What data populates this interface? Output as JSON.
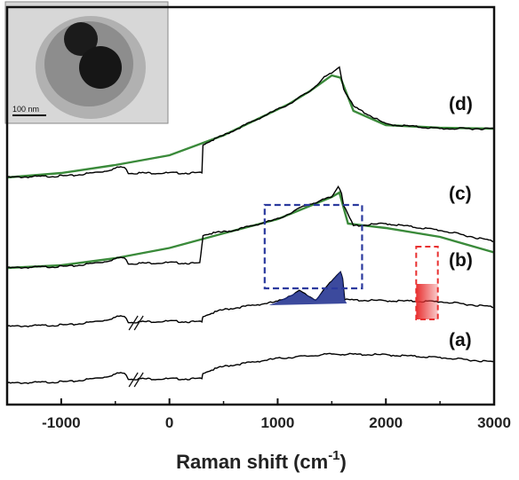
{
  "chart_data": {
    "type": "line",
    "title": "",
    "xlabel": "Raman shift",
    "xlabel_unit_base": "cm",
    "xlabel_unit_exp": "-1",
    "ylabel": "",
    "xlim": [
      -1500,
      3000
    ],
    "xticks": [
      -1000,
      0,
      1000,
      2000,
      3000
    ],
    "xtick_labels": [
      "-1000",
      "0",
      "1000",
      "2000",
      "3000"
    ],
    "grid": false,
    "colors": {
      "measured": "#000000",
      "fit": "#3a8a3a",
      "highlight_blue": "#1a2a8c",
      "highlight_red": "#e83030"
    },
    "series": [
      {
        "label": "(a)",
        "offset": 0,
        "x": [
          -1500,
          -900,
          -600,
          -450,
          -400,
          -380,
          300,
          310,
          500,
          1000,
          1500,
          2000,
          2500,
          3000
        ],
        "y": [
          0,
          4,
          14,
          24,
          20,
          10,
          10,
          24,
          38,
          56,
          66,
          64,
          58,
          48
        ]
      },
      {
        "label": "(b)",
        "offset": 1,
        "x": [
          -1500,
          -900,
          -600,
          -450,
          -400,
          -380,
          0,
          300,
          310,
          500,
          1000,
          1200,
          1350,
          1580,
          1600,
          1620,
          2000,
          2500,
          3000
        ],
        "y": [
          0,
          4,
          14,
          24,
          20,
          10,
          12,
          10,
          24,
          38,
          56,
          80,
          60,
          125,
          110,
          60,
          58,
          56,
          44
        ]
      },
      {
        "label": "(c)",
        "offset": 2,
        "x": [
          -1500,
          -900,
          -600,
          -450,
          -400,
          -380,
          0,
          280,
          300,
          310,
          600,
          1000,
          1250,
          1500,
          1560,
          1590,
          1610,
          1700,
          2000,
          2500,
          3000
        ],
        "y": [
          0,
          4,
          14,
          24,
          20,
          10,
          12,
          10,
          50,
          75,
          85,
          110,
          140,
          160,
          185,
          170,
          140,
          95,
          100,
          85,
          60
        ],
        "fit_x": [
          -1500,
          -1000,
          -500,
          0,
          500,
          1000,
          1300,
          1500,
          1570,
          1650,
          2000,
          2500,
          3000
        ],
        "fit_y": [
          0,
          6,
          22,
          45,
          78,
          110,
          140,
          160,
          170,
          100,
          90,
          70,
          35
        ]
      },
      {
        "label": "(d)",
        "offset": 3,
        "x": [
          -1500,
          -900,
          -600,
          -450,
          -400,
          -380,
          300,
          310,
          500,
          800,
          1100,
          1300,
          1430,
          1500,
          1570,
          1610,
          1700,
          2000,
          2500,
          3000
        ],
        "y": [
          0,
          4,
          14,
          24,
          20,
          10,
          10,
          75,
          95,
          130,
          165,
          195,
          225,
          235,
          250,
          200,
          160,
          120,
          110,
          110
        ],
        "fit_x": [
          -1500,
          -1000,
          -500,
          0,
          500,
          800,
          1100,
          1300,
          1500,
          1580,
          1700,
          2000,
          2500,
          3000
        ],
        "fit_y": [
          0,
          10,
          28,
          50,
          95,
          130,
          165,
          195,
          230,
          225,
          150,
          118,
          112,
          110
        ]
      }
    ],
    "highlights": [
      {
        "kind": "dashed-box",
        "color": "blue",
        "x_range": [
          880,
          1780
        ]
      },
      {
        "kind": "dashed-box",
        "color": "red",
        "x_range": [
          2280,
          2480
        ]
      }
    ],
    "inset": {
      "scale_bar_label": "100 nm"
    }
  }
}
